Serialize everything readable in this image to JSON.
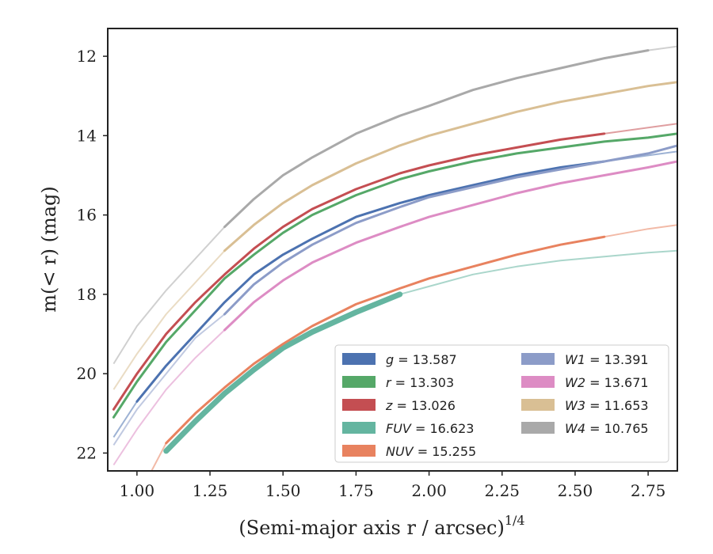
{
  "chart_data": {
    "type": "line",
    "xlabel": "(Semi-major axis r / arcsec)",
    "xlabel_sup": "1/4",
    "ylabel": "m(< r) (mag)",
    "xlim": [
      0.9,
      2.85
    ],
    "ylim": [
      22.45,
      11.3
    ],
    "y_inverted": true,
    "x_ticks": [
      "1.00",
      "1.25",
      "1.50",
      "1.75",
      "2.00",
      "2.25",
      "2.50",
      "2.75"
    ],
    "y_ticks": [
      "12",
      "14",
      "16",
      "18",
      "20",
      "22"
    ],
    "grid": false,
    "legend_position": "lower-right",
    "series": [
      {
        "name": "g",
        "label": "g = 13.587",
        "color": "#4c72b0",
        "x": [
          0.92,
          1.0,
          1.1,
          1.2,
          1.3,
          1.4,
          1.5,
          1.6,
          1.75,
          1.9,
          2.0,
          2.15,
          2.3,
          2.45,
          2.6,
          2.75,
          2.85
        ],
        "y": [
          21.6,
          20.7,
          19.8,
          19.0,
          18.2,
          17.5,
          17.0,
          16.6,
          16.05,
          15.7,
          15.5,
          15.25,
          15.0,
          14.8,
          14.65,
          14.5,
          14.4
        ],
        "solid_range": [
          1.0,
          2.65
        ]
      },
      {
        "name": "r",
        "label": "r = 13.303",
        "color": "#55a868",
        "x": [
          0.92,
          1.0,
          1.1,
          1.2,
          1.3,
          1.4,
          1.5,
          1.6,
          1.75,
          1.9,
          2.0,
          2.15,
          2.3,
          2.45,
          2.6,
          2.75,
          2.85
        ],
        "y": [
          21.1,
          20.2,
          19.2,
          18.4,
          17.6,
          17.0,
          16.45,
          16.0,
          15.5,
          15.1,
          14.9,
          14.65,
          14.45,
          14.3,
          14.15,
          14.05,
          13.95
        ],
        "solid_range": [
          0.92,
          2.85
        ]
      },
      {
        "name": "z",
        "label": "z = 13.026",
        "color": "#c44e52",
        "x": [
          0.92,
          1.0,
          1.1,
          1.2,
          1.3,
          1.4,
          1.5,
          1.6,
          1.75,
          1.9,
          2.0,
          2.15,
          2.3,
          2.45,
          2.6,
          2.75,
          2.85
        ],
        "y": [
          20.9,
          20.0,
          19.0,
          18.2,
          17.5,
          16.85,
          16.3,
          15.85,
          15.35,
          14.95,
          14.75,
          14.5,
          14.3,
          14.1,
          13.95,
          13.8,
          13.7
        ],
        "solid_range": [
          0.92,
          2.65
        ]
      },
      {
        "name": "FUV",
        "label": "FUV = 16.623",
        "color": "#64b5a0",
        "x": [
          1.1,
          1.2,
          1.3,
          1.4,
          1.5,
          1.6,
          1.75,
          1.9,
          2.0,
          2.15,
          2.3,
          2.45,
          2.6,
          2.75,
          2.85
        ],
        "y": [
          21.95,
          21.2,
          20.5,
          19.9,
          19.35,
          18.95,
          18.45,
          18.0,
          17.8,
          17.5,
          17.3,
          17.15,
          17.05,
          16.95,
          16.9
        ],
        "solid_range": [
          1.1,
          1.97
        ]
      },
      {
        "name": "NUV",
        "label": "NUV = 15.255",
        "color": "#e8825f",
        "x": [
          1.05,
          1.1,
          1.2,
          1.3,
          1.4,
          1.5,
          1.6,
          1.75,
          1.9,
          2.0,
          2.15,
          2.3,
          2.45,
          2.6,
          2.75,
          2.85
        ],
        "y": [
          22.45,
          21.75,
          21.0,
          20.35,
          19.75,
          19.25,
          18.8,
          18.25,
          17.85,
          17.6,
          17.3,
          17.0,
          16.75,
          16.55,
          16.35,
          16.25
        ],
        "solid_range": [
          1.1,
          2.65
        ]
      },
      {
        "name": "W1",
        "label": "W1 = 13.391",
        "color": "#8c9cc8",
        "x": [
          0.92,
          1.0,
          1.1,
          1.2,
          1.3,
          1.4,
          1.5,
          1.6,
          1.75,
          1.9,
          2.0,
          2.15,
          2.3,
          2.45,
          2.6,
          2.75,
          2.85
        ],
        "y": [
          21.8,
          20.9,
          20.0,
          19.1,
          18.5,
          17.75,
          17.2,
          16.75,
          16.2,
          15.8,
          15.55,
          15.3,
          15.05,
          14.85,
          14.65,
          14.45,
          14.25
        ],
        "solid_range": [
          1.3,
          2.85
        ]
      },
      {
        "name": "W2",
        "label": "W2 = 13.671",
        "color": "#dd8cc4",
        "x": [
          0.92,
          1.0,
          1.1,
          1.2,
          1.3,
          1.4,
          1.5,
          1.6,
          1.75,
          1.9,
          2.0,
          2.15,
          2.3,
          2.45,
          2.6,
          2.75,
          2.85
        ],
        "y": [
          22.3,
          21.4,
          20.4,
          19.6,
          18.9,
          18.2,
          17.65,
          17.2,
          16.7,
          16.3,
          16.05,
          15.75,
          15.45,
          15.2,
          15.0,
          14.8,
          14.65
        ],
        "solid_range": [
          1.3,
          2.85
        ]
      },
      {
        "name": "W3",
        "label": "W3 = 11.653",
        "color": "#d9bf94",
        "x": [
          0.92,
          1.0,
          1.1,
          1.2,
          1.3,
          1.4,
          1.5,
          1.6,
          1.75,
          1.9,
          2.0,
          2.15,
          2.3,
          2.45,
          2.6,
          2.75,
          2.85
        ],
        "y": [
          20.4,
          19.5,
          18.5,
          17.7,
          16.9,
          16.25,
          15.7,
          15.25,
          14.7,
          14.25,
          14.0,
          13.7,
          13.4,
          13.15,
          12.95,
          12.75,
          12.65
        ],
        "solid_range": [
          1.3,
          2.85
        ]
      },
      {
        "name": "W4",
        "label": "W4 = 10.765",
        "color": "#a9a9a9",
        "x": [
          0.92,
          1.0,
          1.1,
          1.2,
          1.3,
          1.4,
          1.5,
          1.6,
          1.75,
          1.9,
          2.0,
          2.15,
          2.3,
          2.45,
          2.6,
          2.75,
          2.85
        ],
        "y": [
          19.75,
          18.8,
          17.9,
          17.1,
          16.3,
          15.6,
          15.0,
          14.55,
          13.95,
          13.5,
          13.25,
          12.85,
          12.55,
          12.3,
          12.05,
          11.85,
          11.75
        ],
        "solid_range": [
          1.3,
          2.8
        ]
      }
    ]
  }
}
